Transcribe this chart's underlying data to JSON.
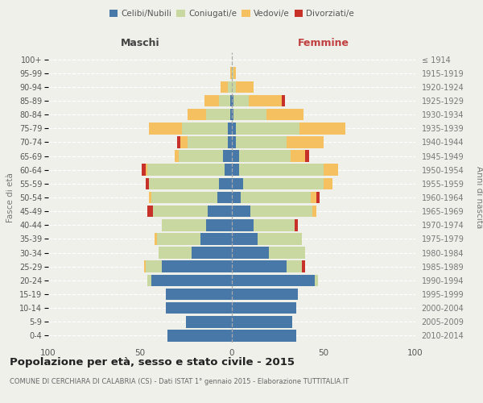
{
  "age_groups": [
    "0-4",
    "5-9",
    "10-14",
    "15-19",
    "20-24",
    "25-29",
    "30-34",
    "35-39",
    "40-44",
    "45-49",
    "50-54",
    "55-59",
    "60-64",
    "65-69",
    "70-74",
    "75-79",
    "80-84",
    "85-89",
    "90-94",
    "95-99",
    "100+"
  ],
  "birth_years": [
    "2010-2014",
    "2005-2009",
    "2000-2004",
    "1995-1999",
    "1990-1994",
    "1985-1989",
    "1980-1984",
    "1975-1979",
    "1970-1974",
    "1965-1969",
    "1960-1964",
    "1955-1959",
    "1950-1954",
    "1945-1949",
    "1940-1944",
    "1935-1939",
    "1930-1934",
    "1925-1929",
    "1920-1924",
    "1915-1919",
    "≤ 1914"
  ],
  "maschi": {
    "celibi": [
      35,
      25,
      36,
      36,
      44,
      38,
      22,
      17,
      14,
      13,
      8,
      7,
      4,
      5,
      2,
      2,
      1,
      1,
      0,
      0,
      0
    ],
    "coniugati": [
      0,
      0,
      0,
      0,
      2,
      9,
      18,
      24,
      24,
      30,
      36,
      38,
      42,
      24,
      22,
      25,
      13,
      6,
      2,
      0,
      0
    ],
    "vedovi": [
      0,
      0,
      0,
      0,
      0,
      1,
      0,
      1,
      0,
      0,
      1,
      0,
      1,
      2,
      4,
      18,
      10,
      8,
      4,
      1,
      0
    ],
    "divorziati": [
      0,
      0,
      0,
      0,
      0,
      0,
      0,
      0,
      0,
      3,
      0,
      2,
      2,
      0,
      2,
      0,
      0,
      0,
      0,
      0,
      0
    ]
  },
  "femmine": {
    "nubili": [
      35,
      33,
      35,
      36,
      45,
      30,
      20,
      14,
      12,
      10,
      5,
      6,
      4,
      4,
      2,
      2,
      1,
      1,
      0,
      0,
      0
    ],
    "coniugate": [
      0,
      0,
      0,
      0,
      2,
      8,
      20,
      24,
      22,
      34,
      38,
      44,
      46,
      28,
      28,
      35,
      18,
      8,
      2,
      1,
      0
    ],
    "vedove": [
      0,
      0,
      0,
      0,
      0,
      0,
      0,
      0,
      0,
      2,
      3,
      5,
      8,
      8,
      20,
      25,
      20,
      18,
      10,
      1,
      0
    ],
    "divorziate": [
      0,
      0,
      0,
      0,
      0,
      2,
      0,
      0,
      2,
      0,
      2,
      0,
      0,
      2,
      0,
      0,
      0,
      2,
      0,
      0,
      0
    ]
  },
  "colors": {
    "celibi": "#4878a8",
    "coniugati": "#c8d8a0",
    "vedovi": "#f5c060",
    "divorziati": "#c8302a"
  },
  "xlim": 100,
  "title": "Popolazione per età, sesso e stato civile - 2015",
  "subtitle": "COMUNE DI CERCHIARA DI CALABRIA (CS) - Dati ISTAT 1° gennaio 2015 - Elaborazione TUTTITALIA.IT",
  "ylabel_left": "Fasce di età",
  "ylabel_right": "Anni di nascita",
  "xlabel_left": "Maschi",
  "xlabel_right": "Femmine",
  "bg_color": "#f0f0eb",
  "bar_height": 0.85
}
